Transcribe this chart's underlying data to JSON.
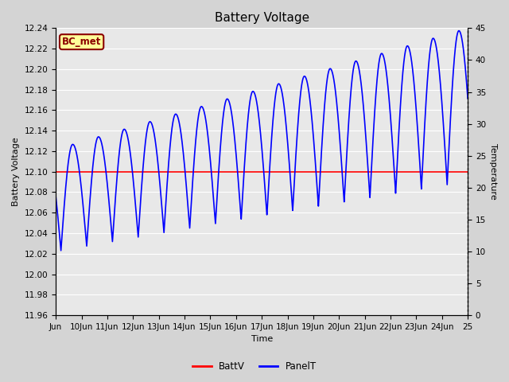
{
  "title": "Battery Voltage",
  "xlabel": "Time",
  "ylabel_left": "Battery Voltage",
  "ylabel_right": "Temperature",
  "bc_met_label": "BC_met",
  "ylim_left": [
    11.96,
    12.24
  ],
  "ylim_right": [
    0,
    45
  ],
  "yticks_left": [
    11.96,
    11.98,
    12.0,
    12.02,
    12.04,
    12.06,
    12.08,
    12.1,
    12.12,
    12.14,
    12.16,
    12.18,
    12.2,
    12.22,
    12.24
  ],
  "yticks_right": [
    0,
    5,
    10,
    15,
    20,
    25,
    30,
    35,
    40,
    45
  ],
  "xlim": [
    9,
    25
  ],
  "xtick_positions": [
    9,
    10,
    11,
    12,
    13,
    14,
    15,
    16,
    17,
    18,
    19,
    20,
    21,
    22,
    23,
    24,
    25
  ],
  "xtick_labels": [
    "Jun",
    "10Jun",
    "11Jun",
    "12Jun",
    "13Jun",
    "14Jun",
    "15Jun",
    "16Jun",
    "17Jun",
    "18Jun",
    "19Jun",
    "20Jun",
    "21Jun",
    "22Jun",
    "23Jun",
    "24Jun",
    "25"
  ],
  "battv_value": 12.1,
  "battv_color": "#ff0000",
  "panel_color": "#0000ff",
  "background_color": "#d4d4d4",
  "plot_bg_color": "#e8e8e8",
  "legend_labels": [
    "BattV",
    "PanelT"
  ],
  "legend_colors": [
    "#ff0000",
    "#0000ff"
  ],
  "title_fontsize": 11,
  "axis_label_fontsize": 8,
  "tick_fontsize": 7.5,
  "figsize": [
    6.4,
    4.8
  ],
  "dpi": 100
}
